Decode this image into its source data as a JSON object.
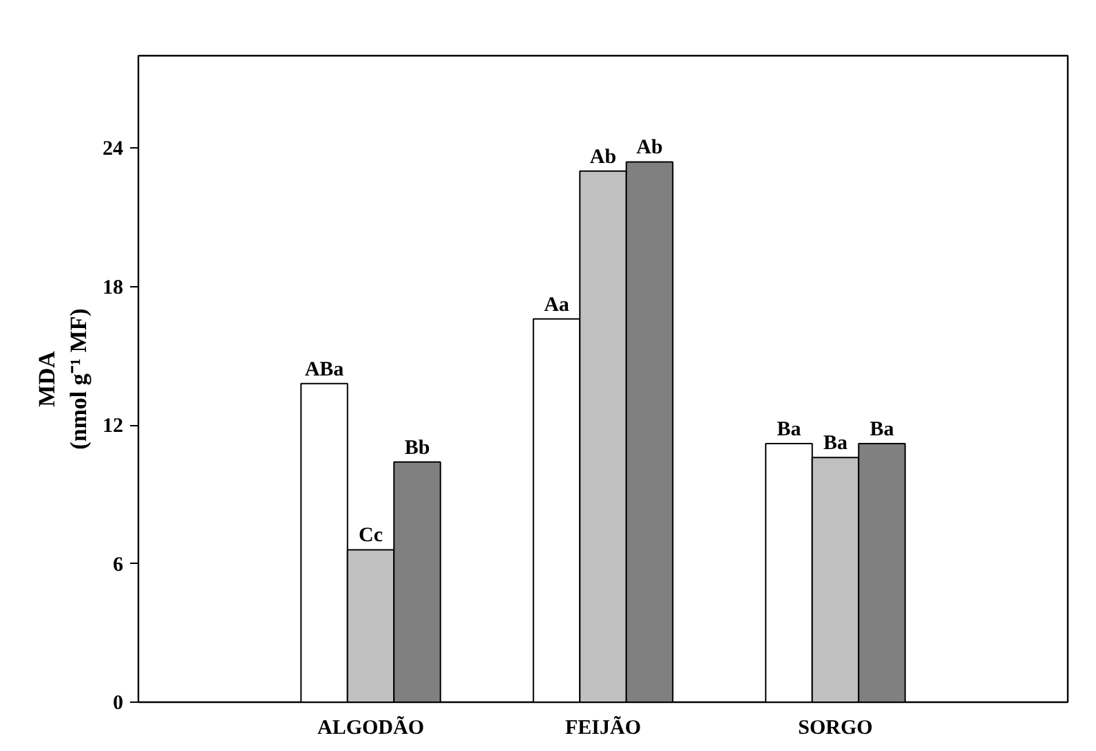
{
  "chart_data": {
    "type": "bar",
    "ylabel": "MDA\n(nmol g⁻¹ MF)",
    "categories": [
      "ALGODÃO",
      "FEIJÃO",
      "SORGO"
    ],
    "series": [
      {
        "color": "#ffffff",
        "values": [
          13.8,
          16.6,
          11.2
        ],
        "value_labels": [
          "ABa",
          "Aa",
          "Ba"
        ]
      },
      {
        "color": "#c0c0c0",
        "values": [
          6.6,
          23.0,
          10.6
        ],
        "value_labels": [
          "Cc",
          "Ab",
          "Ba"
        ]
      },
      {
        "color": "#808080",
        "values": [
          10.4,
          23.4,
          11.2
        ],
        "value_labels": [
          "Bb",
          "Ab",
          "Ba"
        ]
      }
    ],
    "ylim": [
      0,
      28
    ],
    "yticks": [
      0,
      6,
      12,
      18,
      24
    ],
    "grid": false
  }
}
